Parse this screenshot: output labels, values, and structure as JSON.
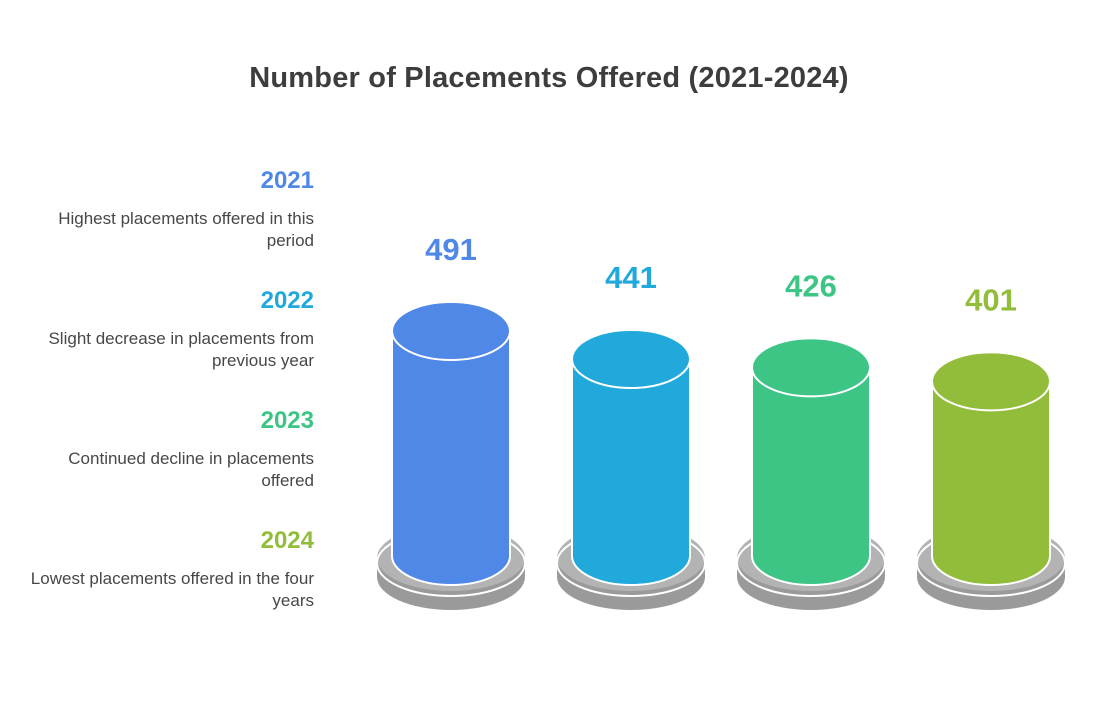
{
  "chart_data": {
    "type": "bar",
    "title": "Number of Placements Offered (2021-2024)",
    "categories": [
      "2021",
      "2022",
      "2023",
      "2024"
    ],
    "values": [
      491,
      441,
      426,
      401
    ],
    "descriptions": [
      "Highest placements offered in this period",
      "Slight decrease in placements from previous year",
      "Continued decline in placements offered",
      "Lowest placements offered in the four years"
    ],
    "colors": [
      "#4f88e6",
      "#21a9dc",
      "#3dc585",
      "#92bd3a"
    ],
    "bar_style": "cylinder",
    "legend_position": "left",
    "grid": false
  }
}
